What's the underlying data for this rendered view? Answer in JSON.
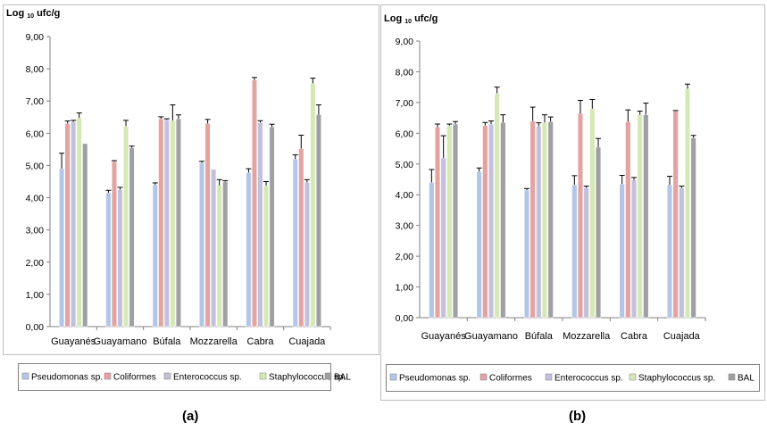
{
  "panel_labels": [
    "(a)",
    "(b)"
  ],
  "colors": {
    "Pseudomonas sp.": "#b3c6e7",
    "Coliformes": "#e3a3a1",
    "Enterococcus sp.": "#c3c0db",
    "Staphylococcus sp.": "#d6e8b6",
    "BAL": "#9ea0a3"
  },
  "chart_data": [
    {
      "type": "bar",
      "panel": "(a)",
      "ylabel_main": "Log",
      "ylabel_sub": "10",
      "ylabel_unit": "ufc/g",
      "ylim": [
        0,
        9
      ],
      "yticks": [
        "0,00",
        "1,00",
        "2,00",
        "3,00",
        "4,00",
        "5,00",
        "6,00",
        "7,00",
        "8,00",
        "9,00"
      ],
      "categories": [
        "Guayanés",
        "Guayamano",
        "Búfala",
        "Mozzarella",
        "Cabra",
        "Cuajada"
      ],
      "legend_position": "bottom",
      "series": [
        {
          "name": "Pseudomonas sp.",
          "values": [
            4.9,
            4.15,
            4.4,
            5.08,
            4.78,
            5.2
          ],
          "errors": [
            0.48,
            0.08,
            0.06,
            0.05,
            0.12,
            0.13
          ]
        },
        {
          "name": "Coliformes",
          "values": [
            6.3,
            5.12,
            6.45,
            6.3,
            7.65,
            5.52
          ],
          "errors": [
            0.08,
            0.03,
            0.06,
            0.13,
            0.08,
            0.42
          ]
        },
        {
          "name": "Enterococcus sp.",
          "values": [
            6.35,
            4.25,
            6.42,
            4.88,
            6.33,
            4.48
          ],
          "errors": [
            0.05,
            0.07,
            0.03,
            0.0,
            0.06,
            0.08
          ]
        },
        {
          "name": "Staphylococcus sp.",
          "values": [
            6.48,
            6.22,
            6.4,
            4.38,
            4.38,
            7.55
          ],
          "errors": [
            0.15,
            0.18,
            0.48,
            0.18,
            0.12,
            0.16
          ]
        },
        {
          "name": "BAL",
          "values": [
            5.68,
            5.55,
            6.45,
            4.5,
            6.2,
            6.58
          ],
          "errors": [
            0.0,
            0.05,
            0.12,
            0.03,
            0.08,
            0.3
          ]
        }
      ]
    },
    {
      "type": "bar",
      "panel": "(b)",
      "ylabel_main": "Log",
      "ylabel_sub": "10",
      "ylabel_unit": "ufc/g",
      "ylim": [
        0,
        9
      ],
      "yticks": [
        "0,00",
        "1,00",
        "2,00",
        "3,00",
        "4,00",
        "5,00",
        "6,00",
        "7,00",
        "8,00",
        "9,00"
      ],
      "categories": [
        "Guayanés",
        "Guayamano",
        "Búfala",
        "Mozzarella",
        "Cabra",
        "Cuajada"
      ],
      "legend_position": "bottom",
      "series": [
        {
          "name": "Pseudomonas sp.",
          "values": [
            4.4,
            4.75,
            4.15,
            4.32,
            4.35,
            4.32
          ],
          "errors": [
            0.42,
            0.12,
            0.05,
            0.3,
            0.28,
            0.28
          ]
        },
        {
          "name": "Coliformes",
          "values": [
            6.2,
            6.25,
            6.4,
            6.65,
            6.38,
            6.72
          ],
          "errors": [
            0.1,
            0.1,
            0.45,
            0.42,
            0.38,
            0.02
          ]
        },
        {
          "name": "Enterococcus sp.",
          "values": [
            5.2,
            6.3,
            6.22,
            4.22,
            4.48,
            4.22
          ],
          "errors": [
            0.72,
            0.1,
            0.12,
            0.06,
            0.08,
            0.06
          ]
        },
        {
          "name": "Staphylococcus sp.",
          "values": [
            6.25,
            7.3,
            6.35,
            6.8,
            6.6,
            7.45
          ],
          "errors": [
            0.05,
            0.2,
            0.25,
            0.3,
            0.12,
            0.15
          ]
        },
        {
          "name": "BAL",
          "values": [
            6.3,
            6.35,
            6.38,
            5.55,
            6.6,
            5.85
          ],
          "errors": [
            0.08,
            0.25,
            0.15,
            0.28,
            0.38,
            0.08
          ]
        }
      ]
    }
  ]
}
